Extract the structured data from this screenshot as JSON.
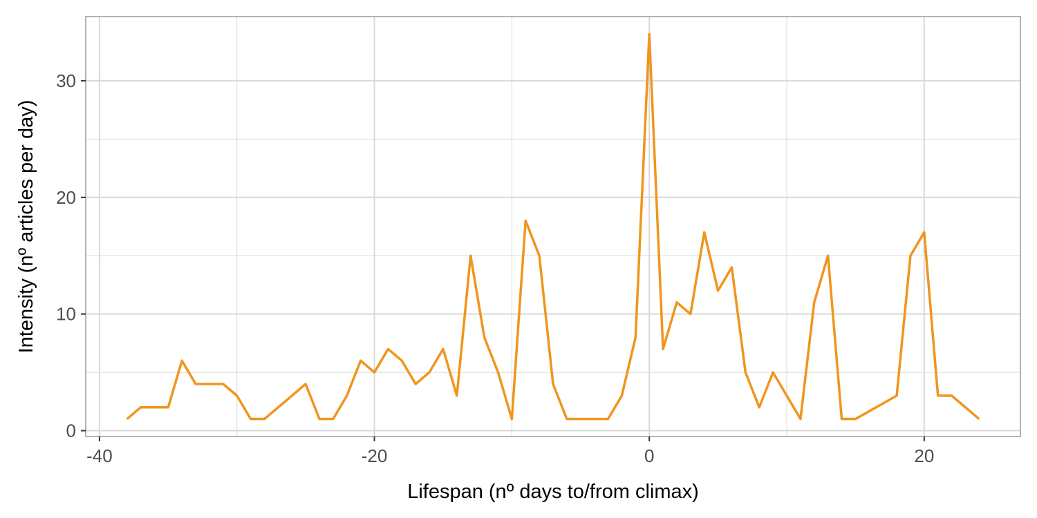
{
  "chart_data": {
    "type": "line",
    "title": "",
    "xlabel": "Lifespan (nº days to/from climax)",
    "ylabel": "Intensity (nº articles per day)",
    "xlim": [
      -41,
      27
    ],
    "ylim": [
      -0.5,
      35.5
    ],
    "x_major_ticks": [
      -40,
      -20,
      0,
      20
    ],
    "x_minor_ticks": [
      -30,
      -10,
      10
    ],
    "y_major_ticks": [
      0,
      10,
      20,
      30
    ],
    "y_minor_ticks": [
      5,
      15,
      25
    ],
    "x_tick_labels": [
      "-40",
      "-20",
      "0",
      "20"
    ],
    "y_tick_labels": [
      "0",
      "10",
      "20",
      "30"
    ],
    "grid": true,
    "legend": "none",
    "colors": {
      "line": "#F0951E",
      "grid": "#d9d9d9",
      "panel_border": "#b3b3b3"
    },
    "series": [
      {
        "x": [
          -38,
          -37,
          -36,
          -35,
          -34,
          -33,
          -32,
          -31,
          -30,
          -29,
          -28,
          -25,
          -24,
          -23,
          -22,
          -21,
          -20,
          -19,
          -18,
          -17,
          -16,
          -15,
          -14,
          -13,
          -12,
          -11,
          -10,
          -9,
          -8,
          -7,
          -6,
          -5,
          -4,
          -3,
          -2,
          -1,
          0,
          1,
          2,
          3,
          4,
          5,
          6,
          7,
          8,
          9,
          10,
          11,
          12,
          13,
          14,
          15,
          18,
          19,
          20,
          21,
          22,
          24
        ],
        "y": [
          1,
          2,
          2,
          2,
          6,
          4,
          4,
          4,
          3,
          1,
          1,
          4,
          1,
          1,
          3,
          6,
          5,
          7,
          6,
          4,
          5,
          7,
          3,
          15,
          8,
          5,
          1,
          18,
          15,
          4,
          1,
          1,
          1,
          1,
          3,
          8,
          34,
          7,
          11,
          10,
          17,
          12,
          14,
          5,
          2,
          5,
          3,
          1,
          11,
          15,
          1,
          1,
          3,
          15,
          17,
          3,
          3,
          1
        ]
      }
    ]
  }
}
